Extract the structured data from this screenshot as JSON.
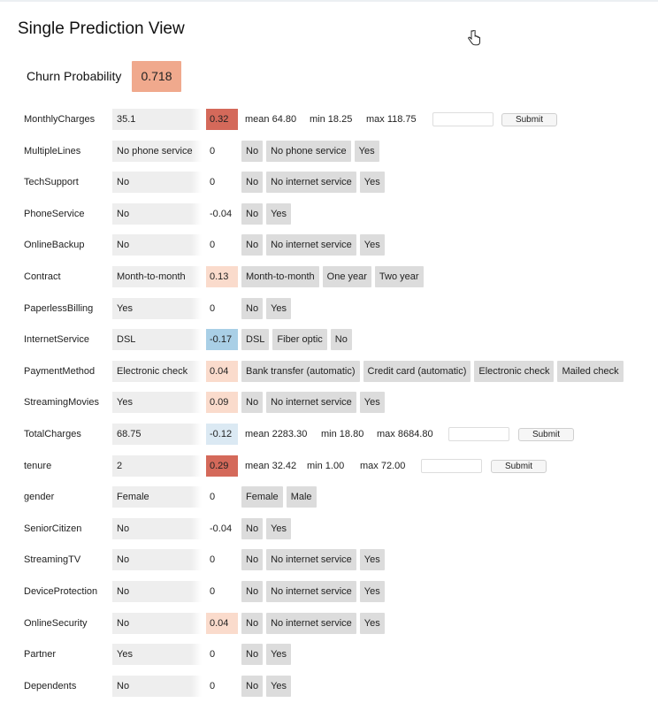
{
  "title": "Single Prediction View",
  "churn": {
    "label": "Churn Probability",
    "value": "0.718",
    "color": "#f0a98d"
  },
  "submit_label": "Submit",
  "colors": {
    "strong_pos": "#d4695a",
    "weak_pos": "#fadbcc",
    "neg": "#a9cfe6",
    "neg_light": "#dbe9f3",
    "neutral": "#ffffff"
  },
  "features": [
    {
      "name": "MonthlyCharges",
      "value": "35.1",
      "contrib": "0.32",
      "tone": "strong_pos",
      "numeric": true,
      "stats": {
        "mean": "mean 64.80",
        "min": "min 18.25",
        "max": "max 118.75"
      }
    },
    {
      "name": "MultipleLines",
      "value": "No phone service",
      "contrib": "0",
      "tone": "neutral",
      "options": [
        "No",
        "No phone service",
        "Yes"
      ]
    },
    {
      "name": "TechSupport",
      "value": "No",
      "contrib": "0",
      "tone": "neutral",
      "options": [
        "No",
        "No internet service",
        "Yes"
      ]
    },
    {
      "name": "PhoneService",
      "value": "No",
      "contrib": "-0.04",
      "tone": "neutral",
      "options": [
        "No",
        "Yes"
      ]
    },
    {
      "name": "OnlineBackup",
      "value": "No",
      "contrib": "0",
      "tone": "neutral",
      "options": [
        "No",
        "No internet service",
        "Yes"
      ]
    },
    {
      "name": "Contract",
      "value": "Month-to-month",
      "contrib": "0.13",
      "tone": "weak_pos",
      "options": [
        "Month-to-month",
        "One year",
        "Two year"
      ]
    },
    {
      "name": "PaperlessBilling",
      "value": "Yes",
      "contrib": "0",
      "tone": "neutral",
      "options": [
        "No",
        "Yes"
      ]
    },
    {
      "name": "InternetService",
      "value": "DSL",
      "contrib": "-0.17",
      "tone": "neg",
      "options": [
        "DSL",
        "Fiber optic",
        "No"
      ]
    },
    {
      "name": "PaymentMethod",
      "value": "Electronic check",
      "contrib": "0.04",
      "tone": "weak_pos",
      "options": [
        "Bank transfer (automatic)",
        "Credit card (automatic)",
        "Electronic check",
        "Mailed check"
      ]
    },
    {
      "name": "StreamingMovies",
      "value": "Yes",
      "contrib": "0.09",
      "tone": "weak_pos",
      "options": [
        "No",
        "No internet service",
        "Yes"
      ]
    },
    {
      "name": "TotalCharges",
      "value": "68.75",
      "contrib": "-0.12",
      "tone": "neg_light",
      "numeric": true,
      "stats": {
        "mean": "mean 2283.30",
        "min": "min 18.80",
        "max": "max 8684.80"
      }
    },
    {
      "name": "tenure",
      "value": "2",
      "contrib": "0.29",
      "tone": "strong_pos",
      "numeric": true,
      "stats": {
        "mean": "mean 32.42",
        "min": "min 1.00",
        "max": "max 72.00"
      }
    },
    {
      "name": "gender",
      "value": "Female",
      "contrib": "0",
      "tone": "neutral",
      "options": [
        "Female",
        "Male"
      ]
    },
    {
      "name": "SeniorCitizen",
      "value": "No",
      "contrib": "-0.04",
      "tone": "neutral",
      "options": [
        "No",
        "Yes"
      ]
    },
    {
      "name": "StreamingTV",
      "value": "No",
      "contrib": "0",
      "tone": "neutral",
      "options": [
        "No",
        "No internet service",
        "Yes"
      ]
    },
    {
      "name": "DeviceProtection",
      "value": "No",
      "contrib": "0",
      "tone": "neutral",
      "options": [
        "No",
        "No internet service",
        "Yes"
      ]
    },
    {
      "name": "OnlineSecurity",
      "value": "No",
      "contrib": "0.04",
      "tone": "weak_pos",
      "options": [
        "No",
        "No internet service",
        "Yes"
      ]
    },
    {
      "name": "Partner",
      "value": "Yes",
      "contrib": "0",
      "tone": "neutral",
      "options": [
        "No",
        "Yes"
      ]
    },
    {
      "name": "Dependents",
      "value": "No",
      "contrib": "0",
      "tone": "neutral",
      "options": [
        "No",
        "Yes"
      ]
    }
  ]
}
